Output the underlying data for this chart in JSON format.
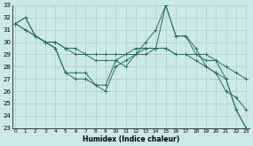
{
  "xlabel": "Humidex (Indice chaleur)",
  "bg_color": "#cce8e8",
  "grid_color": "#aacfcf",
  "line_color": "#2a7060",
  "x": [
    0,
    1,
    2,
    3,
    4,
    5,
    6,
    7,
    8,
    9,
    10,
    11,
    12,
    13,
    14,
    15,
    16,
    17,
    18,
    19,
    20,
    21,
    22,
    23
  ],
  "series": [
    [
      31.5,
      32.0,
      30.5,
      30.0,
      29.5,
      27.5,
      27.5,
      27.5,
      26.5,
      26.5,
      28.5,
      28.0,
      29.0,
      29.5,
      29.5,
      33.0,
      30.5,
      30.5,
      29.0,
      28.5,
      28.5,
      27.0,
      24.5,
      23.0
    ],
    [
      31.5,
      31.0,
      30.5,
      30.0,
      30.0,
      29.5,
      29.5,
      29.0,
      29.0,
      29.0,
      29.0,
      29.0,
      29.0,
      29.0,
      29.5,
      29.5,
      29.0,
      29.0,
      29.0,
      29.0,
      28.5,
      28.0,
      27.5,
      27.0
    ],
    [
      31.5,
      31.0,
      30.5,
      30.0,
      30.0,
      29.5,
      29.0,
      29.0,
      28.5,
      28.5,
      28.5,
      29.0,
      29.5,
      29.5,
      29.5,
      29.5,
      29.0,
      29.0,
      28.5,
      28.0,
      27.5,
      26.0,
      25.5,
      24.5
    ],
    [
      31.5,
      32.0,
      30.5,
      30.0,
      29.5,
      27.5,
      27.0,
      27.0,
      26.5,
      26.0,
      28.0,
      28.5,
      29.0,
      30.0,
      31.0,
      33.0,
      30.5,
      30.5,
      29.5,
      28.0,
      27.5,
      27.0,
      24.5,
      23.0
    ]
  ],
  "ylim": [
    23,
    33
  ],
  "yticks": [
    23,
    24,
    25,
    26,
    27,
    28,
    29,
    30,
    31,
    32,
    33
  ],
  "xticks": [
    0,
    1,
    2,
    3,
    4,
    5,
    6,
    7,
    8,
    9,
    10,
    11,
    12,
    13,
    14,
    15,
    16,
    17,
    18,
    19,
    20,
    21,
    22,
    23
  ]
}
